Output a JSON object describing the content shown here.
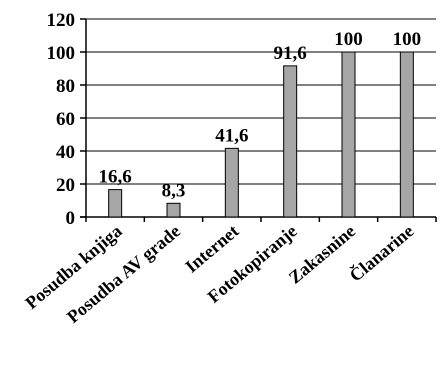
{
  "chart_data": {
    "type": "bar",
    "title": "",
    "xlabel": "",
    "ylabel": "",
    "categories": [
      "Posudba knjiga",
      "Posudba AV grade",
      "Internet",
      "Fotokopiranje",
      "Zakasnine",
      "Članarine"
    ],
    "values": [
      16.6,
      8.3,
      41.6,
      91.6,
      100,
      100
    ],
    "value_labels": [
      "16,6",
      "8,3",
      "41,6",
      "91,6",
      "100",
      "100"
    ],
    "yticks": [
      "0",
      "20",
      "40",
      "60",
      "80",
      "100",
      "120"
    ],
    "ylim": [
      0,
      120
    ],
    "grid": true,
    "legend": "none",
    "colors": {
      "bar": "#a6a6a6",
      "bar_edge": "#000000",
      "grid": "#000000"
    }
  }
}
